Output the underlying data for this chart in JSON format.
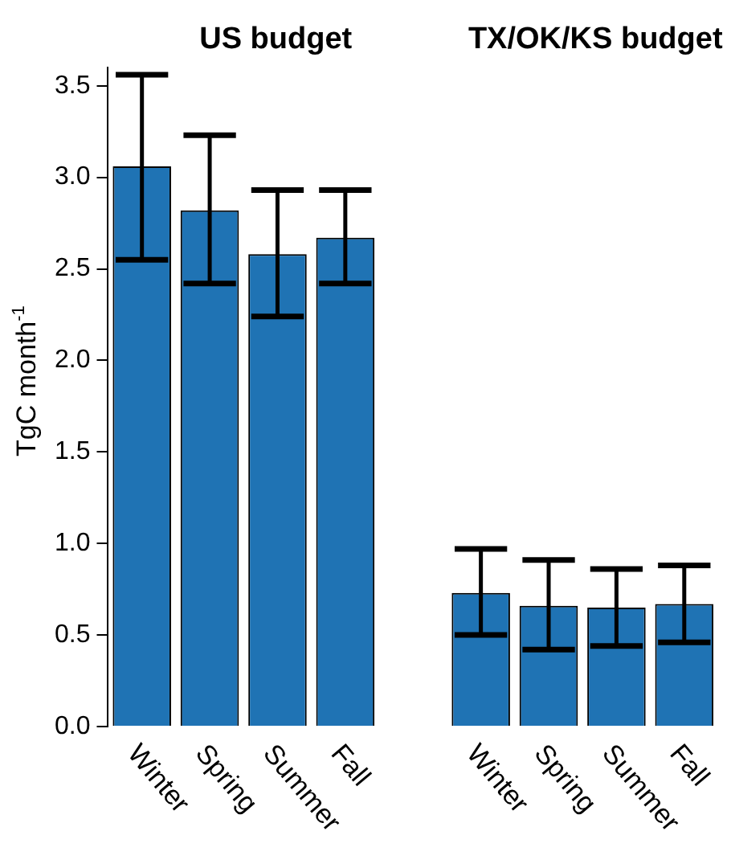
{
  "chart_data": {
    "type": "bar",
    "title": "US budget",
    "ylabel": "TgC month$^{-1}$",
    "annotations": [
      "TX/OK/KS budget"
    ],
    "categories": [
      "Winter",
      "Spring",
      "Summer",
      "Fall",
      null,
      "Winter",
      "Spring",
      "Summer",
      "Fall"
    ],
    "values": [
      3.06,
      2.82,
      2.58,
      2.67,
      null,
      0.73,
      0.66,
      0.65,
      0.67
    ],
    "errors": [
      [
        2.55,
        3.56
      ],
      [
        2.42,
        3.23
      ],
      [
        2.24,
        2.93
      ],
      [
        2.42,
        2.93
      ],
      null,
      [
        0.5,
        0.97
      ],
      [
        0.42,
        0.91
      ],
      [
        0.44,
        0.86
      ],
      [
        0.46,
        0.88
      ]
    ],
    "color": "#1f73b4",
    "ylim": [
      0,
      3.6
    ],
    "yticks": [
      {
        "value": 0,
        "label": "0.0"
      },
      0.5,
      {
        "value": 1,
        "label": "1.0"
      },
      1.5,
      {
        "value": 2,
        "label": "2.0"
      },
      2.5,
      {
        "value": 3,
        "label": "3.0"
      },
      3.5
    ]
  }
}
